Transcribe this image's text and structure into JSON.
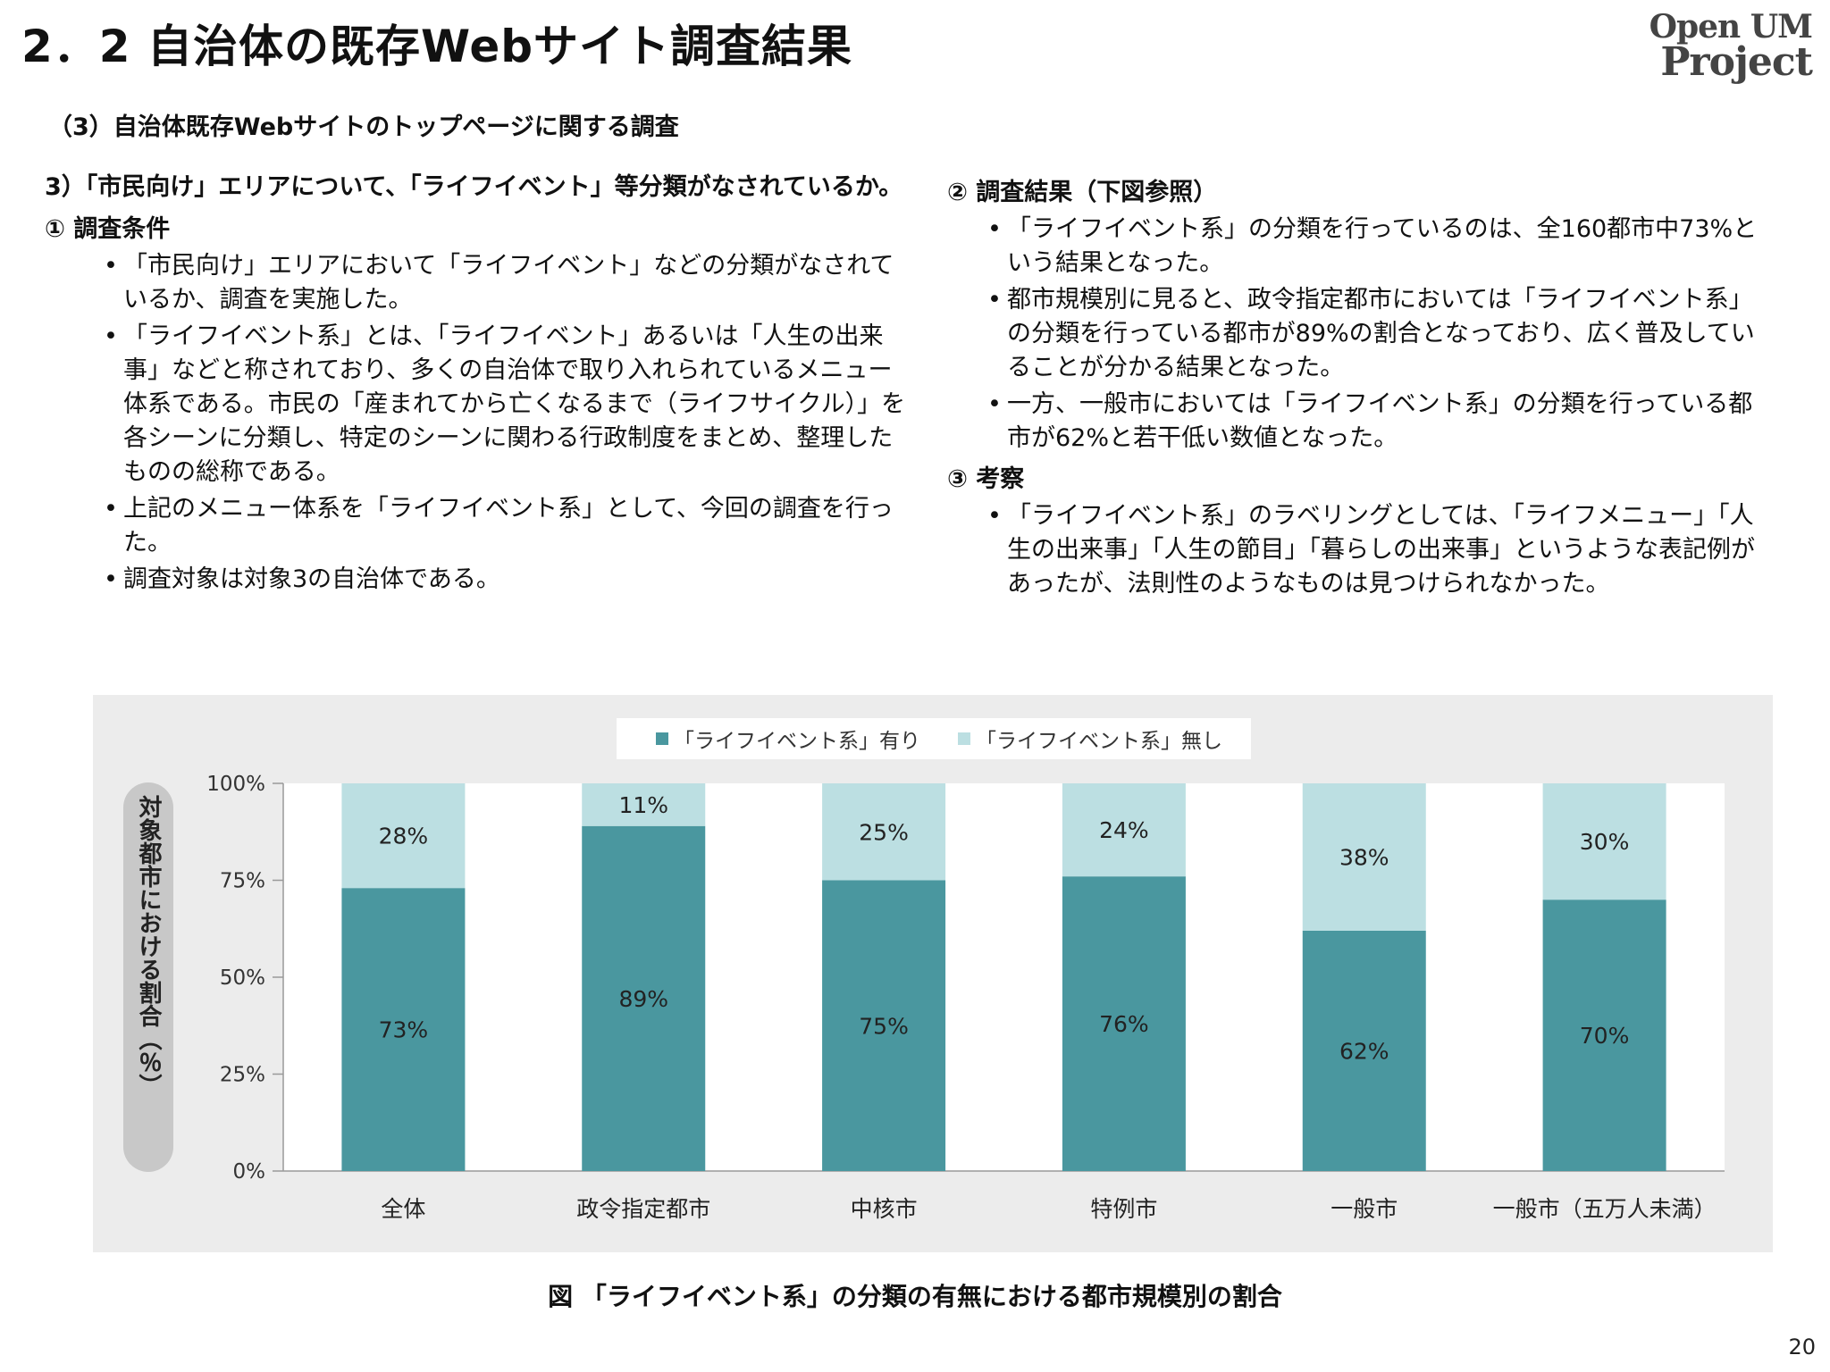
{
  "title": "2．2 自治体の既存Webサイト調査結果",
  "logo": {
    "line1": "Open UM",
    "line2": "Project"
  },
  "subtitle": "（3）自治体既存Webサイトのトップページに関する調査",
  "left": {
    "heading": "3）「市民向け」エリアについて、「ライフイベント」等分類がなされているか。",
    "section1_title": "① 調査条件",
    "bullets": [
      "「市民向け」エリアにおいて「ライフイベント」などの分類がなされているか、調査を実施した。",
      "「ライフイベント系」とは、「ライフイベント」あるいは「人生の出来事」などと称されており、多くの自治体で取り入れられているメニュー体系である。市民の「産まれてから亡くなるまで（ライフサイクル）」を各シーンに分類し、特定のシーンに関わる行政制度をまとめ、整理したものの総称である。",
      "上記のメニュー体系を「ライフイベント系」として、今回の調査を行った。",
      "調査対象は対象3の自治体である。"
    ]
  },
  "right": {
    "section2_title": "② 調査結果（下図参照）",
    "section2_bullets": [
      "「ライフイベント系」の分類を行っているのは、全160都市中73%という結果となった。",
      "都市規模別に見ると、政令指定都市においては「ライフイベント系」の分類を行っている都市が89%の割合となっており、広く普及していることが分かる結果となった。",
      "一方、一般市においては「ライフイベント系」の分類を行っている都市が62%と若干低い数値となった。"
    ],
    "section3_title": "③ 考察",
    "section3_bullets": [
      "「ライフイベント系」のラベリングとしては、「ライフメニュー」「人生の出来事」「人生の節目」「暮らしの出来事」というような表記例があったが、法則性のようなものは見つけられなかった。"
    ]
  },
  "chart_data": {
    "type": "bar",
    "stacked": true,
    "categories": [
      "全体",
      "政令指定都市",
      "中核市",
      "特例市",
      "一般市",
      "一般市（五万人未満）"
    ],
    "series": [
      {
        "name": "「ライフイベント系」有り",
        "values": [
          73,
          89,
          75,
          76,
          62,
          70
        ],
        "color": "#4a979f"
      },
      {
        "name": "「ライフイベント系」無し",
        "values": [
          28,
          11,
          25,
          24,
          38,
          30
        ],
        "color": "#bcdfe2"
      }
    ],
    "ylabel": "対象都市における割合（％）",
    "ylim": [
      0,
      100
    ],
    "yticks": [
      "0%",
      "25%",
      "50%",
      "75%",
      "100%"
    ],
    "legend_position": "top-center",
    "grid": false
  },
  "caption": "図 「ライフイベント系」の分類の有無における都市規模別の割合",
  "page_number": "20"
}
